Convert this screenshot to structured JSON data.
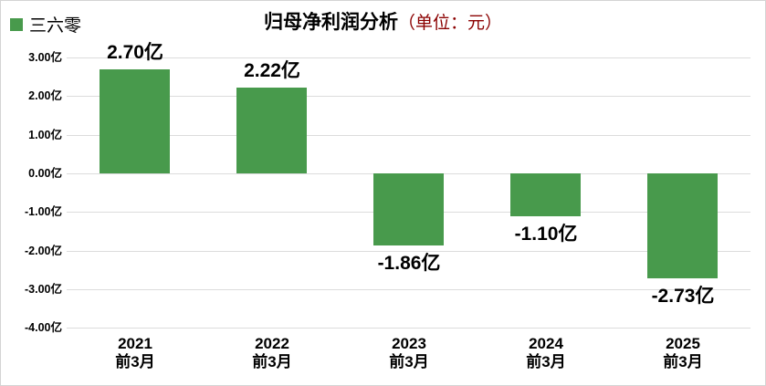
{
  "legend": {
    "label": "三六零",
    "color": "#489a4c"
  },
  "title": {
    "main": "归母净利润分析",
    "unit": "（单位：元）",
    "unit_color": "#8b0000"
  },
  "chart_data": {
    "type": "bar",
    "title": "归母净利润分析（单位：元）",
    "series_name": "三六零",
    "categories": [
      {
        "line1": "2021",
        "line2": "前3月"
      },
      {
        "line1": "2022",
        "line2": "前3月"
      },
      {
        "line1": "2023",
        "line2": "前3月"
      },
      {
        "line1": "2024",
        "line2": "前3月"
      },
      {
        "line1": "2025",
        "line2": "前3月"
      }
    ],
    "values": [
      2.7,
      2.22,
      -1.86,
      -1.1,
      -2.73
    ],
    "value_labels": [
      "2.70亿",
      "2.22亿",
      "-1.86亿",
      "-1.10亿",
      "-2.73亿"
    ],
    "unit": "亿",
    "y_ticks": [
      3,
      2,
      1,
      0,
      -1,
      -2,
      -3,
      -4
    ],
    "y_tick_labels": [
      "3.00亿",
      "2.00亿",
      "1.00亿",
      "0.00亿",
      "-1.00亿",
      "-2.00亿",
      "-3.00亿",
      "-4.00亿"
    ],
    "ylim": [
      -4,
      3
    ],
    "bar_color": "#489a4c",
    "grid": true,
    "gridline_color": "#dcdcdc",
    "legend_position": "top-left"
  }
}
